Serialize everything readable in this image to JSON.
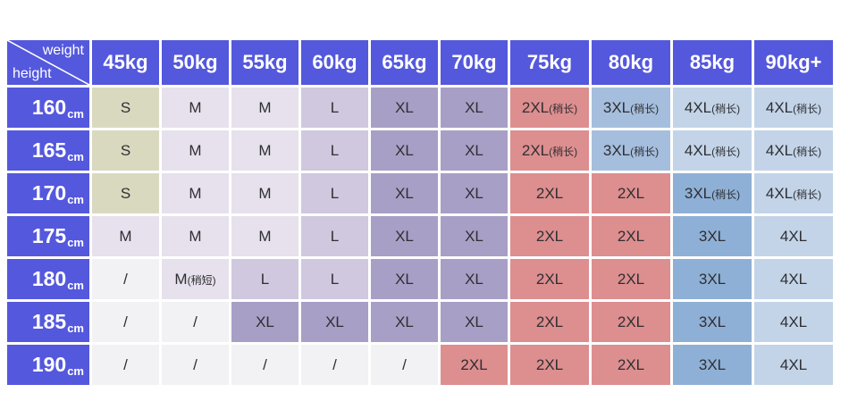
{
  "chart_data": {
    "type": "table",
    "corner": {
      "top_label": "weight",
      "bottom_label": "height"
    },
    "columns": [
      "45kg",
      "50kg",
      "55kg",
      "60kg",
      "65kg",
      "70kg",
      "75kg",
      "80kg",
      "85kg",
      "90kg+"
    ],
    "palette": {
      "header_bg": "#5458dd",
      "header_text": "#ffffff",
      "cell_text": "#2f2f33",
      "grid": "#ffffff",
      "s": "#d9d9c0",
      "m": "#e6e1ec",
      "l": "#cfc8de",
      "xl": "#a89fc6",
      "xxl": "#dd8e8f",
      "xxxl": "#8fb0d6",
      "xxxl_soft": "#a5bedd",
      "xxxxl": "#c3d4e8",
      "empty": "#f2f1f4"
    },
    "rows": [
      {
        "height": "160",
        "unit": "cm",
        "cells": [
          {
            "text": "S",
            "bg": "s"
          },
          {
            "text": "M",
            "bg": "m"
          },
          {
            "text": "M",
            "bg": "m"
          },
          {
            "text": "L",
            "bg": "l"
          },
          {
            "text": "XL",
            "bg": "xl"
          },
          {
            "text": "XL",
            "bg": "xl"
          },
          {
            "text": "2XL",
            "note": "(稍长)",
            "bg": "xxl"
          },
          {
            "text": "3XL",
            "note": "(稍长)",
            "bg": "xxxl_soft"
          },
          {
            "text": "4XL",
            "note": "(稍长)",
            "bg": "xxxxl"
          },
          {
            "text": "4XL",
            "note": "(稍长)",
            "bg": "xxxxl"
          }
        ]
      },
      {
        "height": "165",
        "unit": "cm",
        "cells": [
          {
            "text": "S",
            "bg": "s"
          },
          {
            "text": "M",
            "bg": "m"
          },
          {
            "text": "M",
            "bg": "m"
          },
          {
            "text": "L",
            "bg": "l"
          },
          {
            "text": "XL",
            "bg": "xl"
          },
          {
            "text": "XL",
            "bg": "xl"
          },
          {
            "text": "2XL",
            "note": "(稍长)",
            "bg": "xxl"
          },
          {
            "text": "3XL",
            "note": "(稍长)",
            "bg": "xxxl_soft"
          },
          {
            "text": "4XL",
            "note": "(稍长)",
            "bg": "xxxxl"
          },
          {
            "text": "4XL",
            "note": "(稍长)",
            "bg": "xxxxl"
          }
        ]
      },
      {
        "height": "170",
        "unit": "cm",
        "cells": [
          {
            "text": "S",
            "bg": "s"
          },
          {
            "text": "M",
            "bg": "m"
          },
          {
            "text": "M",
            "bg": "m"
          },
          {
            "text": "L",
            "bg": "l"
          },
          {
            "text": "XL",
            "bg": "xl"
          },
          {
            "text": "XL",
            "bg": "xl"
          },
          {
            "text": "2XL",
            "bg": "xxl"
          },
          {
            "text": "2XL",
            "bg": "xxl"
          },
          {
            "text": "3XL",
            "note": "(稍长)",
            "bg": "xxxl"
          },
          {
            "text": "4XL",
            "note": "(稍长)",
            "bg": "xxxxl"
          }
        ]
      },
      {
        "height": "175",
        "unit": "cm",
        "cells": [
          {
            "text": "M",
            "bg": "m"
          },
          {
            "text": "M",
            "bg": "m"
          },
          {
            "text": "M",
            "bg": "m"
          },
          {
            "text": "L",
            "bg": "l"
          },
          {
            "text": "XL",
            "bg": "xl"
          },
          {
            "text": "XL",
            "bg": "xl"
          },
          {
            "text": "2XL",
            "bg": "xxl"
          },
          {
            "text": "2XL",
            "bg": "xxl"
          },
          {
            "text": "3XL",
            "bg": "xxxl"
          },
          {
            "text": "4XL",
            "bg": "xxxxl"
          }
        ]
      },
      {
        "height": "180",
        "unit": "cm",
        "cells": [
          {
            "text": "/",
            "bg": "empty"
          },
          {
            "text": "M",
            "note": "(稍短)",
            "bg": "m"
          },
          {
            "text": "L",
            "bg": "l"
          },
          {
            "text": "L",
            "bg": "l"
          },
          {
            "text": "XL",
            "bg": "xl"
          },
          {
            "text": "XL",
            "bg": "xl"
          },
          {
            "text": "2XL",
            "bg": "xxl"
          },
          {
            "text": "2XL",
            "bg": "xxl"
          },
          {
            "text": "3XL",
            "bg": "xxxl"
          },
          {
            "text": "4XL",
            "bg": "xxxxl"
          }
        ]
      },
      {
        "height": "185",
        "unit": "cm",
        "cells": [
          {
            "text": "/",
            "bg": "empty"
          },
          {
            "text": "/",
            "bg": "empty"
          },
          {
            "text": "XL",
            "bg": "xl"
          },
          {
            "text": "XL",
            "bg": "xl"
          },
          {
            "text": "XL",
            "bg": "xl"
          },
          {
            "text": "XL",
            "bg": "xl"
          },
          {
            "text": "2XL",
            "bg": "xxl"
          },
          {
            "text": "2XL",
            "bg": "xxl"
          },
          {
            "text": "3XL",
            "bg": "xxxl"
          },
          {
            "text": "4XL",
            "bg": "xxxxl"
          }
        ]
      },
      {
        "height": "190",
        "unit": "cm",
        "cells": [
          {
            "text": "/",
            "bg": "empty"
          },
          {
            "text": "/",
            "bg": "empty"
          },
          {
            "text": "/",
            "bg": "empty"
          },
          {
            "text": "/",
            "bg": "empty"
          },
          {
            "text": "/",
            "bg": "empty"
          },
          {
            "text": "2XL",
            "bg": "xxl"
          },
          {
            "text": "2XL",
            "bg": "xxl"
          },
          {
            "text": "2XL",
            "bg": "xxl"
          },
          {
            "text": "3XL",
            "bg": "xxxl"
          },
          {
            "text": "4XL",
            "bg": "xxxxl"
          }
        ]
      }
    ]
  }
}
